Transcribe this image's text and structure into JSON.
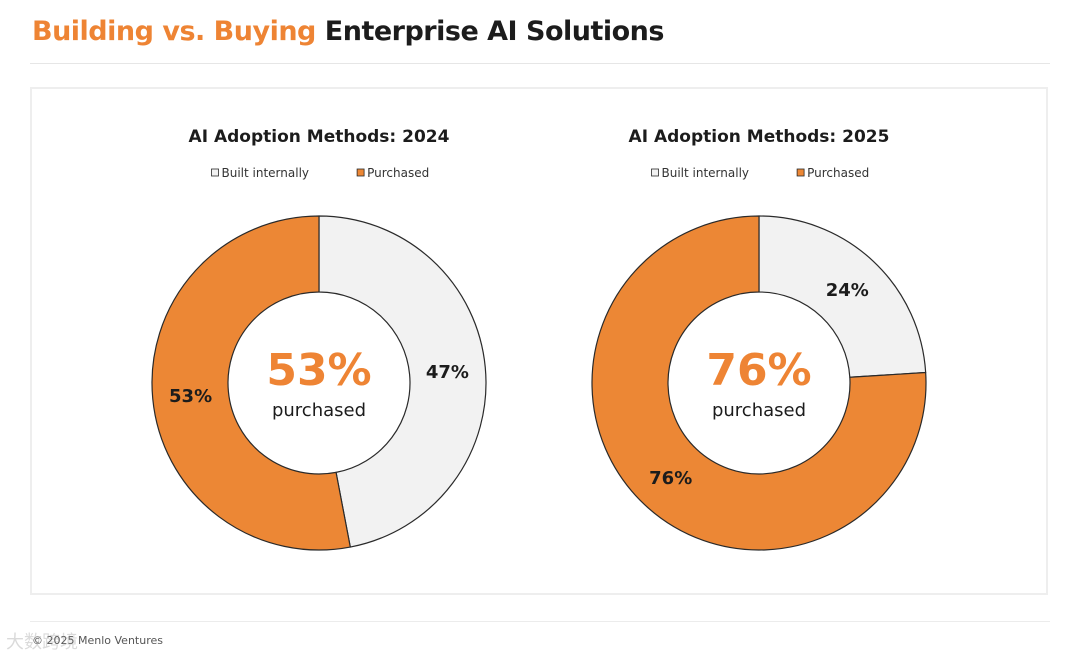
{
  "page": {
    "title_accent": "Building vs. Buying",
    "title_rest": "Enterprise AI Solutions",
    "footer": "© 2025 Menlo Ventures",
    "watermark": "大数跨境"
  },
  "colors": {
    "accent": "#EE8434",
    "purchased": "#EC8735",
    "built": "#F2F2F2",
    "stroke": "#2a2a2a",
    "text": "#1c1c1c"
  },
  "chart_data": [
    {
      "type": "pie",
      "title": "AI Adoption Methods: 2024",
      "legend_position": "top-center",
      "categories": [
        "Built internally",
        "Purchased"
      ],
      "values": [
        47,
        53
      ],
      "value_labels": [
        "47%",
        "53%"
      ],
      "center_value": "53%",
      "center_label": "purchased"
    },
    {
      "type": "pie",
      "title": "AI Adoption Methods: 2025",
      "legend_position": "top-center",
      "categories": [
        "Built internally",
        "Purchased"
      ],
      "values": [
        24,
        76
      ],
      "value_labels": [
        "24%",
        "76%"
      ],
      "center_value": "76%",
      "center_label": "purchased"
    }
  ]
}
